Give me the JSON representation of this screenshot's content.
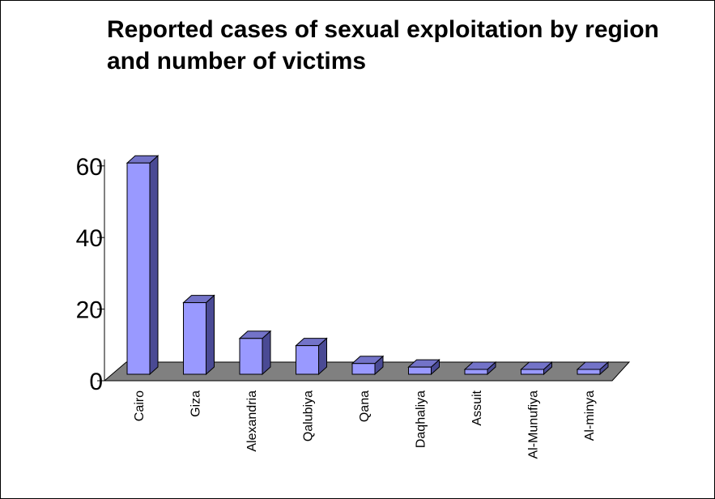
{
  "chart_data": {
    "type": "bar",
    "title": "Reported cases of sexual exploitation by region and number of victims",
    "categories": [
      "Cairo",
      "Giza",
      "Alexandria",
      "Qalubiya",
      "Qana",
      "Daqhaliya",
      "Assuit",
      "Al-Munufiya",
      "Al-minya"
    ],
    "values": [
      59,
      20,
      10,
      8,
      3,
      2,
      1,
      1,
      1
    ],
    "yticks": [
      0,
      20,
      40,
      60
    ],
    "ylim": [
      0,
      60
    ],
    "xlabel": "",
    "ylabel": "",
    "grid": false,
    "legend": "none",
    "three_d": true,
    "colors": {
      "bar_front": "#9999ff",
      "bar_side": "#4a4a94",
      "bar_top": "#7373c8",
      "floor": "#808080",
      "outline": "#000000"
    }
  }
}
